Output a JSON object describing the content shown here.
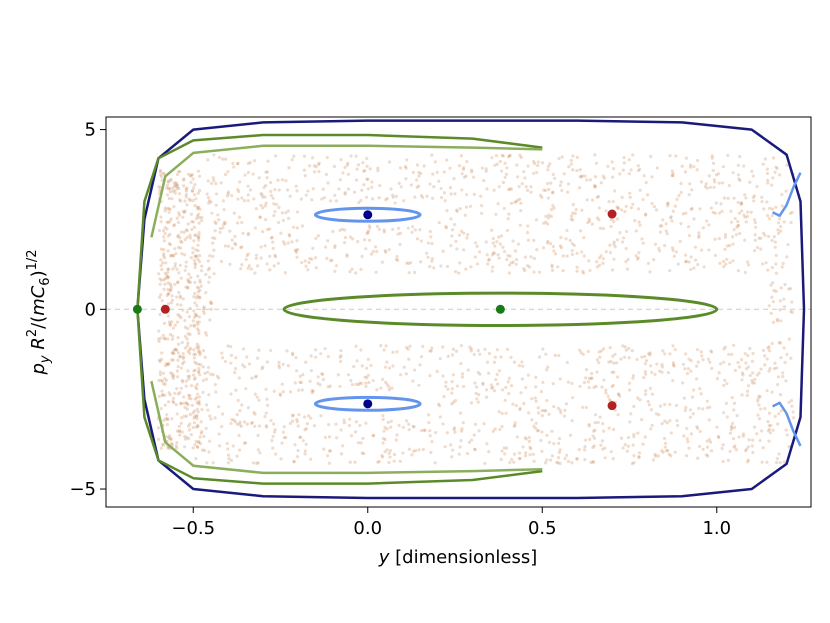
{
  "chart_data": {
    "type": "scatter",
    "title": "",
    "xlabel": {
      "italic": "y",
      "rest": " [dimensionless]"
    },
    "ylabel": {
      "p": "p",
      "sub": "y",
      "R": " R",
      "sq": "2",
      "mid": "/(",
      "m": "m",
      "C": "C",
      "six": "6",
      "close": ")",
      "exp": "1/2"
    },
    "xlim": [
      -0.75,
      1.27
    ],
    "ylim": [
      -5.5,
      5.35
    ],
    "xticks": [
      {
        "value": -0.5,
        "label": "−0.5"
      },
      {
        "value": 0.0,
        "label": "0.0"
      },
      {
        "value": 0.5,
        "label": "0.5"
      },
      {
        "value": 1.0,
        "label": "1.0"
      }
    ],
    "yticks": [
      {
        "value": -5,
        "label": "−5"
      },
      {
        "value": 0,
        "label": "0"
      },
      {
        "value": 5,
        "label": "5"
      }
    ],
    "grid": false,
    "reference_line": {
      "y": 0,
      "style": "dashed",
      "color": "#cccccc"
    },
    "colors": {
      "separatrix": "#1a1a7a",
      "chaos": "#c8824a",
      "green_orbit": "#5b8a2a",
      "green_orbit_light": "#8aae5c",
      "blue_orbit": "#6495ed",
      "dark_blue_point": "#00008b",
      "red_point": "#b22222",
      "green_point": "#1a7a1a"
    },
    "series": [
      {
        "kind": "boundary",
        "color": "#1a1a7a",
        "x": [
          -0.66,
          -0.64,
          -0.6,
          -0.5,
          -0.3,
          0.0,
          0.3,
          0.6,
          0.9,
          1.1,
          1.2,
          1.24,
          1.25,
          1.24,
          1.2,
          1.1,
          0.9,
          0.6,
          0.3,
          0.0,
          -0.3,
          -0.5,
          -0.6,
          -0.64,
          -0.66
        ],
        "y": [
          0.0,
          2.5,
          4.2,
          5.0,
          5.2,
          5.25,
          5.25,
          5.25,
          5.2,
          5.0,
          4.3,
          3.0,
          0.0,
          -3.0,
          -4.3,
          -5.0,
          -5.2,
          -5.25,
          -5.25,
          -5.25,
          -5.2,
          -5.0,
          -4.2,
          -2.5,
          0.0
        ]
      },
      {
        "kind": "green_outer_upper",
        "color": "#5b8a2a",
        "x": [
          0.5,
          0.3,
          0.0,
          -0.3,
          -0.5,
          -0.6,
          -0.64,
          -0.66
        ],
        "y": [
          4.5,
          4.75,
          4.85,
          4.85,
          4.7,
          4.2,
          3.0,
          0.0
        ]
      },
      {
        "kind": "green_outer_lower",
        "color": "#5b8a2a",
        "x": [
          0.5,
          0.3,
          0.0,
          -0.3,
          -0.5,
          -0.6,
          -0.64,
          -0.66
        ],
        "y": [
          -4.5,
          -4.75,
          -4.85,
          -4.85,
          -4.7,
          -4.2,
          -3.0,
          0.0
        ]
      },
      {
        "kind": "green_inner_upper",
        "color": "#8aae5c",
        "x": [
          0.5,
          0.3,
          0.0,
          -0.3,
          -0.5,
          -0.58,
          -0.62
        ],
        "y": [
          4.45,
          4.5,
          4.55,
          4.55,
          4.35,
          3.7,
          2.0
        ]
      },
      {
        "kind": "green_inner_lower",
        "color": "#8aae5c",
        "x": [
          0.5,
          0.3,
          0.0,
          -0.3,
          -0.5,
          -0.58,
          -0.62
        ],
        "y": [
          -4.45,
          -4.5,
          -4.55,
          -4.55,
          -4.35,
          -3.7,
          -2.0
        ]
      },
      {
        "kind": "green_central_ellipse",
        "color": "#5b8a2a",
        "center": [
          0.38,
          0.0
        ],
        "semi_x": 0.62,
        "semi_y": 0.45
      },
      {
        "kind": "blue_island_upper",
        "color": "#6495ed",
        "center": [
          0.0,
          2.63
        ],
        "semi_x": 0.15,
        "semi_y": 0.18
      },
      {
        "kind": "blue_island_lower",
        "color": "#6495ed",
        "center": [
          0.0,
          -2.63
        ],
        "semi_x": 0.15,
        "semi_y": 0.18
      },
      {
        "kind": "blue_corner_upper",
        "color": "#6495ed",
        "x": [
          1.16,
          1.18,
          1.2,
          1.22,
          1.24
        ],
        "y": [
          2.7,
          2.6,
          2.9,
          3.4,
          3.8
        ]
      },
      {
        "kind": "blue_corner_lower",
        "color": "#6495ed",
        "x": [
          1.16,
          1.18,
          1.2,
          1.22,
          1.24
        ],
        "y": [
          -2.7,
          -2.6,
          -2.9,
          -3.4,
          -3.8
        ]
      }
    ],
    "points": [
      {
        "x": 0.0,
        "y": 2.63,
        "color": "#00008b"
      },
      {
        "x": 0.0,
        "y": -2.63,
        "color": "#00008b"
      },
      {
        "x": 0.7,
        "y": 2.65,
        "color": "#b22222"
      },
      {
        "x": 0.7,
        "y": -2.68,
        "color": "#b22222"
      },
      {
        "x": -0.58,
        "y": 0.0,
        "color": "#b22222"
      },
      {
        "x": -0.66,
        "y": 0.0,
        "color": "#1a7a1a"
      },
      {
        "x": 0.38,
        "y": 0.0,
        "color": "#1a7a1a"
      }
    ]
  }
}
